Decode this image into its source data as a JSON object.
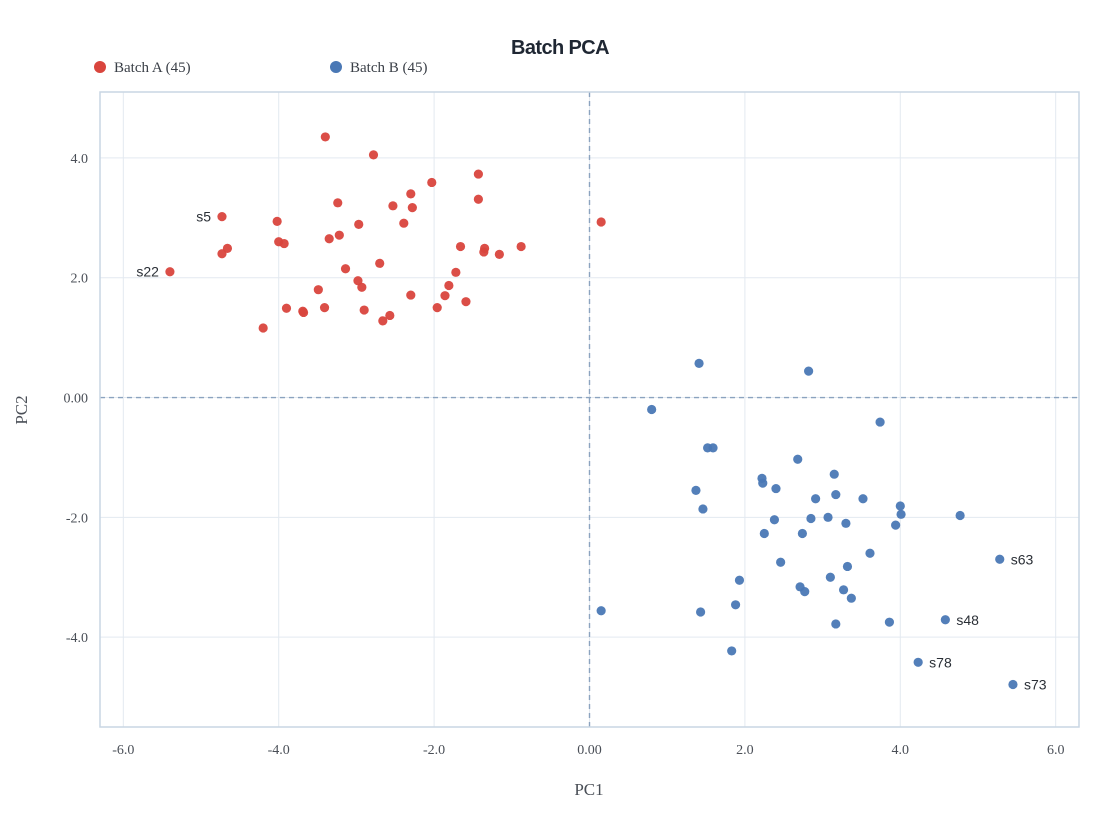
{
  "chart_data": {
    "type": "scatter",
    "title": "Batch PCA",
    "xlabel": "PC1",
    "ylabel": "PC2",
    "xlim": [
      -6.3,
      6.3
    ],
    "ylim": [
      -5.5,
      5.1
    ],
    "xticks": [
      -6,
      -4,
      -2,
      0,
      2,
      4,
      6
    ],
    "yticks": [
      -4,
      -2,
      0,
      2,
      4
    ],
    "xtick_labels": [
      "-6.0",
      "-4.0",
      "-2.0",
      "0.00",
      "2.0",
      "4.0",
      "6.0"
    ],
    "ytick_labels": [
      "-4.0",
      "-2.0",
      "0.00",
      "2.0",
      "4.0"
    ],
    "grid": true,
    "zero_lines": true,
    "legend_position": "top-left",
    "series": [
      {
        "name": "Batch A (45)",
        "color": "#d9453d",
        "points": [
          [
            -5.4,
            2.1
          ],
          [
            -4.73,
            3.02
          ],
          [
            -4.66,
            2.49
          ],
          [
            -4.73,
            2.4
          ],
          [
            -4.02,
            2.94
          ],
          [
            -4.0,
            2.6
          ],
          [
            -3.93,
            2.57
          ],
          [
            -4.2,
            1.16
          ],
          [
            -3.9,
            1.49
          ],
          [
            -3.69,
            1.44
          ],
          [
            -3.68,
            1.42
          ],
          [
            -3.4,
            4.35
          ],
          [
            -3.35,
            2.65
          ],
          [
            -3.41,
            1.5
          ],
          [
            -3.49,
            1.8
          ],
          [
            -3.22,
            2.71
          ],
          [
            -3.24,
            3.25
          ],
          [
            -3.14,
            2.15
          ],
          [
            -2.97,
            2.89
          ],
          [
            -2.98,
            1.95
          ],
          [
            -2.93,
            1.84
          ],
          [
            -2.9,
            1.46
          ],
          [
            -2.78,
            4.05
          ],
          [
            -2.7,
            2.24
          ],
          [
            -2.66,
            1.28
          ],
          [
            -2.57,
            1.37
          ],
          [
            -2.53,
            3.2
          ],
          [
            -2.39,
            2.91
          ],
          [
            -2.3,
            3.4
          ],
          [
            -2.28,
            3.17
          ],
          [
            -2.3,
            1.71
          ],
          [
            -2.03,
            3.59
          ],
          [
            -1.96,
            1.5
          ],
          [
            -1.86,
            1.7
          ],
          [
            -1.81,
            1.87
          ],
          [
            -1.72,
            2.09
          ],
          [
            -1.66,
            2.52
          ],
          [
            -1.59,
            1.6
          ],
          [
            -1.43,
            3.73
          ],
          [
            -1.43,
            3.31
          ],
          [
            -1.36,
            2.43
          ],
          [
            -1.35,
            2.49
          ],
          [
            -1.16,
            2.39
          ],
          [
            -0.88,
            2.52
          ],
          [
            0.15,
            2.93
          ]
        ],
        "labels": [
          {
            "text": "s22",
            "x": -5.4,
            "y": 2.1,
            "side": "left"
          },
          {
            "text": "s5",
            "x": -4.73,
            "y": 3.02,
            "side": "left"
          }
        ]
      },
      {
        "name": "Batch B (45)",
        "color": "#4a78b5",
        "points": [
          [
            0.15,
            -3.56
          ],
          [
            0.8,
            -0.2
          ],
          [
            1.37,
            -1.55
          ],
          [
            1.41,
            0.57
          ],
          [
            1.43,
            -3.58
          ],
          [
            1.46,
            -1.86
          ],
          [
            1.52,
            -0.84
          ],
          [
            1.59,
            -0.84
          ],
          [
            1.83,
            -4.23
          ],
          [
            1.88,
            -3.46
          ],
          [
            1.93,
            -3.05
          ],
          [
            2.22,
            -1.35
          ],
          [
            2.23,
            -1.43
          ],
          [
            2.25,
            -2.27
          ],
          [
            2.38,
            -2.04
          ],
          [
            2.4,
            -1.52
          ],
          [
            2.46,
            -2.75
          ],
          [
            2.68,
            -1.03
          ],
          [
            2.71,
            -3.16
          ],
          [
            2.74,
            -2.27
          ],
          [
            2.77,
            -3.24
          ],
          [
            2.82,
            0.44
          ],
          [
            2.85,
            -2.02
          ],
          [
            2.91,
            -1.69
          ],
          [
            3.07,
            -2.0
          ],
          [
            3.1,
            -3.0
          ],
          [
            3.15,
            -1.28
          ],
          [
            3.17,
            -1.62
          ],
          [
            3.17,
            -3.78
          ],
          [
            3.27,
            -3.21
          ],
          [
            3.3,
            -2.1
          ],
          [
            3.32,
            -2.82
          ],
          [
            3.37,
            -3.35
          ],
          [
            3.52,
            -1.69
          ],
          [
            3.61,
            -2.6
          ],
          [
            3.74,
            -0.41
          ],
          [
            3.86,
            -3.75
          ],
          [
            3.94,
            -2.13
          ],
          [
            4.0,
            -1.81
          ],
          [
            4.01,
            -1.95
          ],
          [
            4.23,
            -4.42
          ],
          [
            4.58,
            -3.71
          ],
          [
            4.77,
            -1.97
          ],
          [
            5.28,
            -2.7
          ],
          [
            5.45,
            -4.79
          ]
        ],
        "labels": [
          {
            "text": "s63",
            "x": 5.28,
            "y": -2.7,
            "side": "right"
          },
          {
            "text": "s48",
            "x": 4.58,
            "y": -3.71,
            "side": "right"
          },
          {
            "text": "s78",
            "x": 4.23,
            "y": -4.42,
            "side": "right"
          },
          {
            "text": "s73",
            "x": 5.45,
            "y": -4.79,
            "side": "right"
          }
        ]
      }
    ]
  }
}
